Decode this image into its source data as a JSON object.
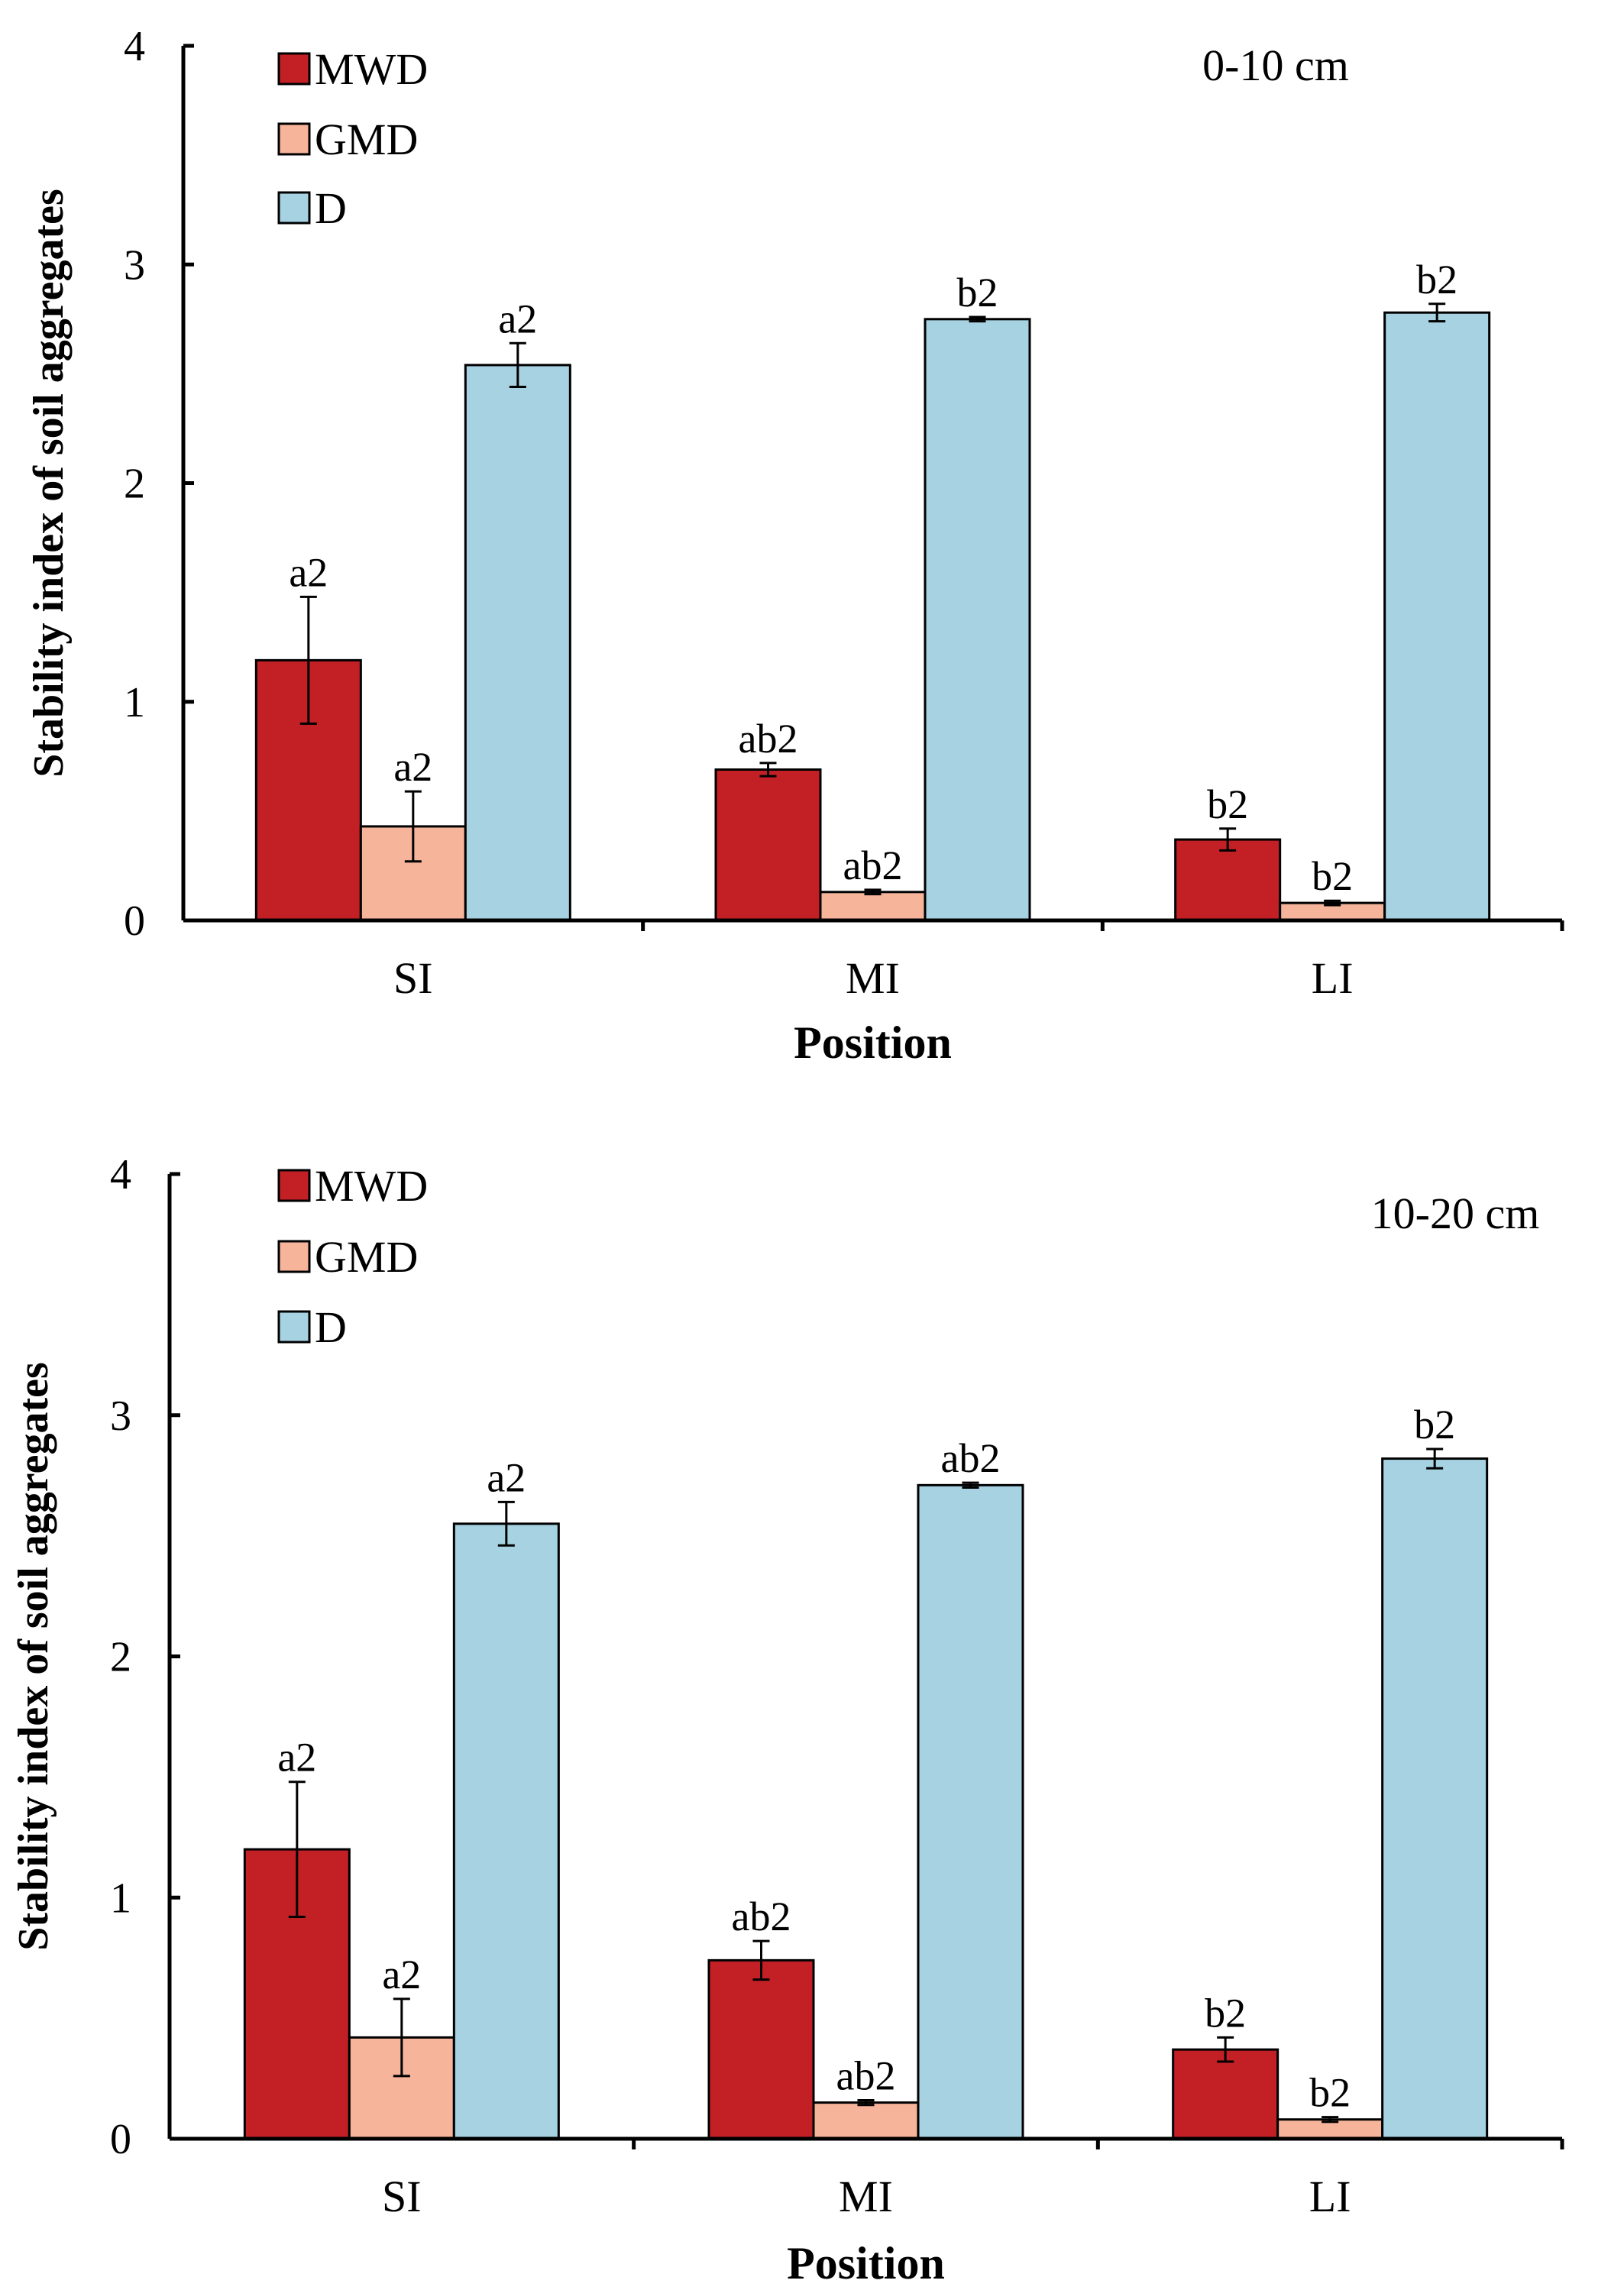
{
  "colors": {
    "MWD": "#c32026",
    "GMD": "#f6b49a",
    "D": "#a6d2e2",
    "axis": "#000000"
  },
  "chart_data": [
    {
      "type": "bar",
      "title": "0-10 cm",
      "xlabel": "Position",
      "ylabel": "Stability index of soil aggregates",
      "ylim": [
        0,
        4
      ],
      "yticks": [
        "0",
        "1",
        "2",
        "3",
        "4"
      ],
      "categories": [
        "SI",
        "MI",
        "LI"
      ],
      "legend_position": "top-left",
      "series": [
        {
          "name": "MWD",
          "color_key": "MWD",
          "values": [
            1.19,
            0.69,
            0.37
          ],
          "errors": [
            0.29,
            0.03,
            0.05
          ],
          "labels": [
            "a2",
            "ab2",
            "b2"
          ]
        },
        {
          "name": "GMD",
          "color_key": "GMD",
          "values": [
            0.43,
            0.13,
            0.08
          ],
          "errors": [
            0.16,
            0.01,
            0.01
          ],
          "labels": [
            "a2",
            "ab2",
            "b2"
          ]
        },
        {
          "name": "D",
          "color_key": "D",
          "values": [
            2.54,
            2.75,
            2.78
          ],
          "errors": [
            0.1,
            0.01,
            0.04
          ],
          "labels": [
            "a2",
            "b2",
            "b2"
          ]
        }
      ]
    },
    {
      "type": "bar",
      "title": "10-20 cm",
      "xlabel": "Position",
      "ylabel": "Stability index of soil aggregates",
      "ylim": [
        0,
        4
      ],
      "yticks": [
        "0",
        "1",
        "2",
        "3",
        "4"
      ],
      "categories": [
        "SI",
        "MI",
        "LI"
      ],
      "legend_position": "top-left",
      "series": [
        {
          "name": "MWD",
          "color_key": "MWD",
          "values": [
            1.2,
            0.74,
            0.37
          ],
          "errors": [
            0.28,
            0.08,
            0.05
          ],
          "labels": [
            "a2",
            "ab2",
            "b2"
          ]
        },
        {
          "name": "GMD",
          "color_key": "GMD",
          "values": [
            0.42,
            0.15,
            0.08
          ],
          "errors": [
            0.16,
            0.01,
            0.01
          ],
          "labels": [
            "a2",
            "ab2",
            "b2"
          ]
        },
        {
          "name": "D",
          "color_key": "D",
          "values": [
            2.55,
            2.71,
            2.82
          ],
          "errors": [
            0.09,
            0.01,
            0.04
          ],
          "labels": [
            "a2",
            "ab2",
            "b2"
          ]
        }
      ]
    }
  ]
}
